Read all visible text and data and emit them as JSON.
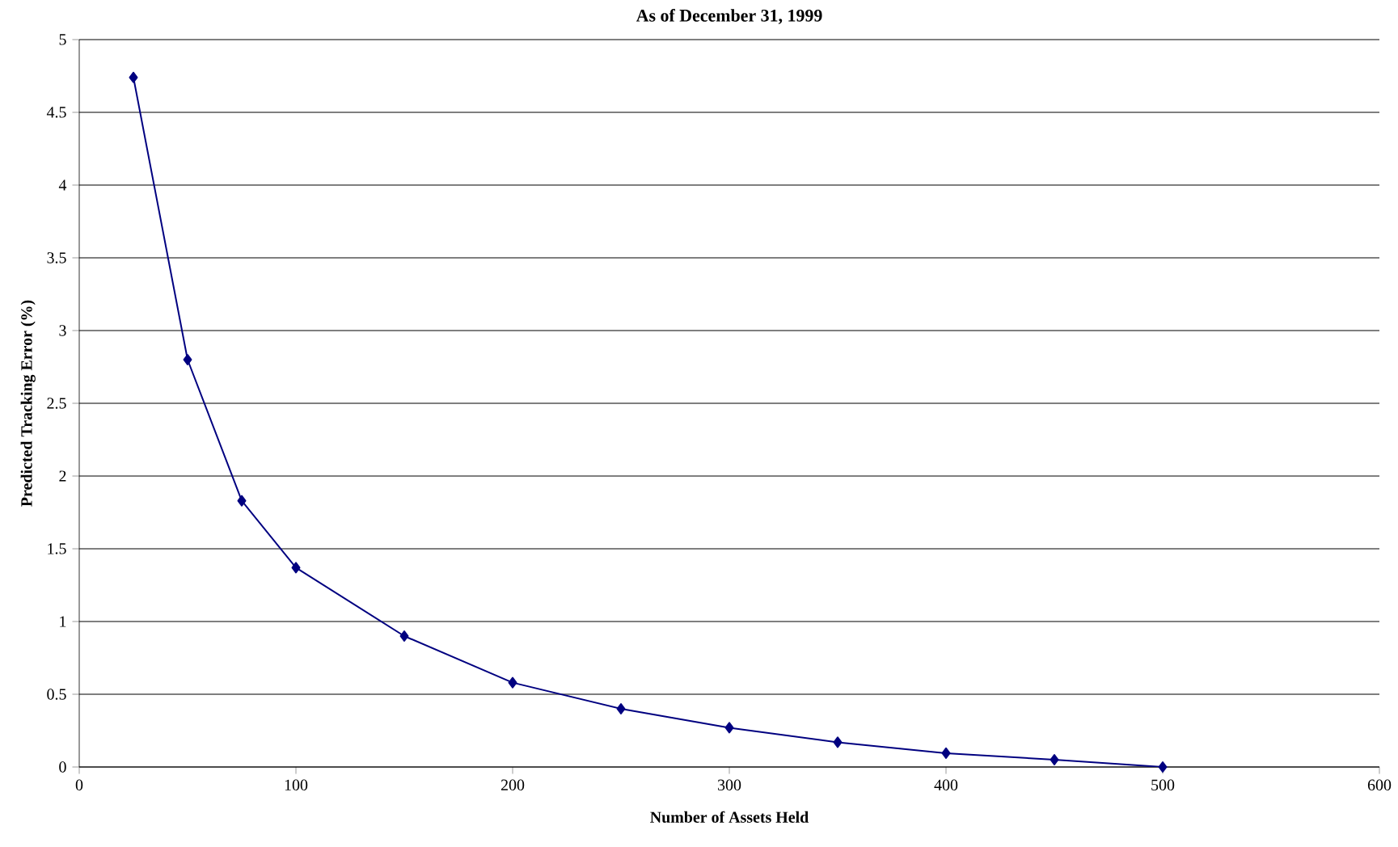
{
  "chart_data": {
    "type": "line",
    "title": "As of December 31, 1999",
    "xlabel": "Number of Assets Held",
    "ylabel": "Predicted Tracking Error (%)",
    "x": [
      25,
      50,
      75,
      100,
      150,
      200,
      250,
      300,
      350,
      400,
      450,
      500
    ],
    "series": [
      {
        "color": "#000080",
        "values": [
          4.74,
          2.8,
          1.83,
          1.37,
          0.9,
          0.58,
          0.4,
          0.27,
          0.17,
          0.095,
          0.05,
          0
        ]
      }
    ],
    "xlim": [
      0,
      600
    ],
    "xticks": [
      0,
      100,
      200,
      300,
      400,
      500,
      600
    ],
    "ylim": [
      0,
      5
    ],
    "yticks": [
      0,
      0.5,
      1,
      1.5,
      2,
      2.5,
      3,
      3.5,
      4,
      4.5,
      5
    ],
    "grid": "y",
    "marker": "diamond",
    "line_style": "solid"
  }
}
